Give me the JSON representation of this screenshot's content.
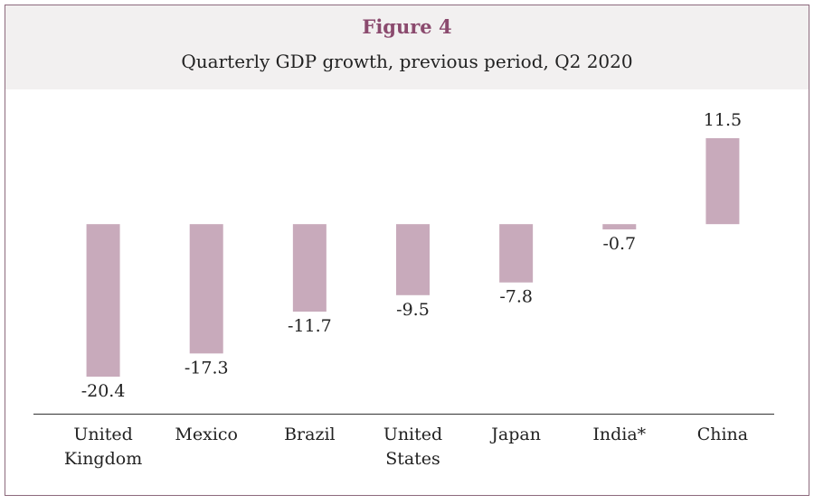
{
  "chart_data": {
    "type": "bar",
    "title": "Figure 4",
    "subtitle": "Quarterly GDP growth, previous period, Q2 2020",
    "categories": [
      "United Kingdom",
      "Mexico",
      "Brazil",
      "United States",
      "Japan",
      "India*",
      "China"
    ],
    "values": [
      -20.4,
      -17.3,
      -11.7,
      -9.5,
      -7.8,
      -0.7,
      11.5
    ],
    "color": "#c8aabb"
  }
}
